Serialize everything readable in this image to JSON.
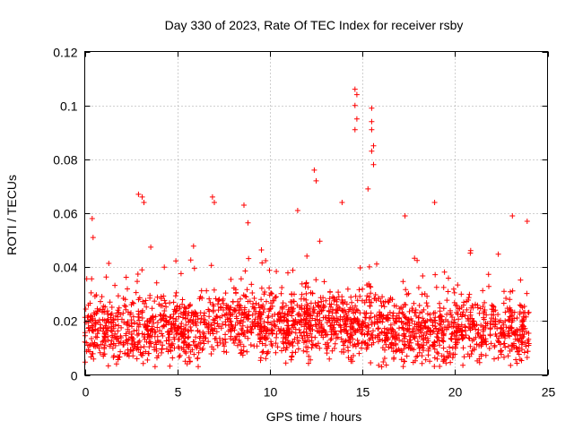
{
  "chart_data": {
    "type": "scatter",
    "title": "Day 330 of 2023, Rate Of TEC Index for receiver rsby",
    "xlabel": "GPS time / hours",
    "ylabel": "ROTI / TECUs",
    "xlim": [
      0,
      25
    ],
    "ylim": [
      0,
      0.12
    ],
    "x_ticks": [
      0,
      5,
      10,
      15,
      20,
      25
    ],
    "y_ticks": [
      0,
      0.02,
      0.04,
      0.06,
      0.08,
      0.1,
      0.12
    ],
    "x_tick_labels": [
      "0",
      "5",
      "10",
      "15",
      "20",
      "25"
    ],
    "y_tick_labels": [
      "0",
      "0.02",
      "0.04",
      "0.06",
      "0.08",
      "0.1",
      "0.12"
    ],
    "grid": true,
    "marker": "+",
    "color": "#ff0000",
    "description_of_distribution": "Dense band of points from 0 to 24 h, mostly between 0.005 and 0.03 TECU",
    "series": [
      {
        "name": "ROTI",
        "x_range": [
          0,
          24
        ],
        "typical_range": [
          0.005,
          0.03
        ],
        "notable_points": [
          {
            "x": 0.4,
            "y": 0.058
          },
          {
            "x": 0.45,
            "y": 0.051
          },
          {
            "x": 2.9,
            "y": 0.067
          },
          {
            "x": 3.1,
            "y": 0.066
          },
          {
            "x": 3.2,
            "y": 0.064
          },
          {
            "x": 6.9,
            "y": 0.066
          },
          {
            "x": 7.0,
            "y": 0.064
          },
          {
            "x": 8.6,
            "y": 0.063
          },
          {
            "x": 11.5,
            "y": 0.061
          },
          {
            "x": 12.4,
            "y": 0.076
          },
          {
            "x": 12.5,
            "y": 0.072
          },
          {
            "x": 13.9,
            "y": 0.064
          },
          {
            "x": 14.6,
            "y": 0.106
          },
          {
            "x": 14.7,
            "y": 0.104
          },
          {
            "x": 14.6,
            "y": 0.1
          },
          {
            "x": 14.7,
            "y": 0.095
          },
          {
            "x": 14.6,
            "y": 0.091
          },
          {
            "x": 15.3,
            "y": 0.069
          },
          {
            "x": 15.5,
            "y": 0.099
          },
          {
            "x": 15.5,
            "y": 0.094
          },
          {
            "x": 15.5,
            "y": 0.091
          },
          {
            "x": 15.6,
            "y": 0.085
          },
          {
            "x": 15.5,
            "y": 0.083
          },
          {
            "x": 15.6,
            "y": 0.078
          },
          {
            "x": 17.3,
            "y": 0.059
          },
          {
            "x": 18.9,
            "y": 0.064
          },
          {
            "x": 23.1,
            "y": 0.059
          },
          {
            "x": 23.9,
            "y": 0.057
          }
        ]
      }
    ]
  }
}
